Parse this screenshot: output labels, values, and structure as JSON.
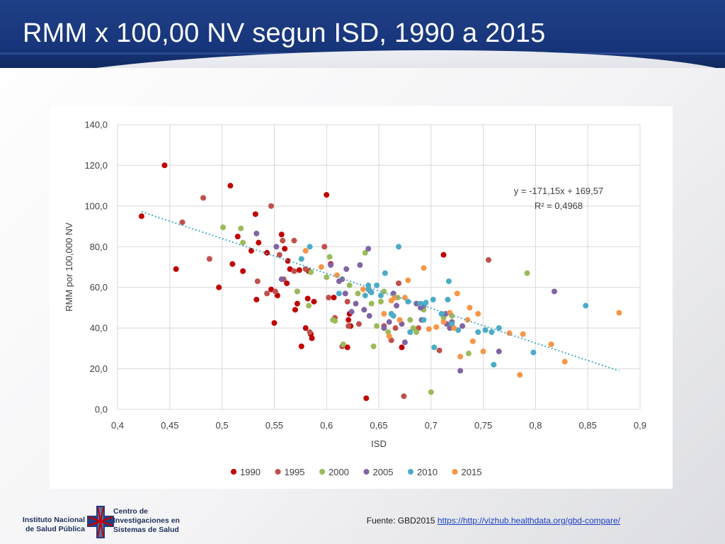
{
  "slide": {
    "title": "RMM x 100,00 NV segun ISD, 1990 a 2015",
    "source_prefix": "Fuente: GBD2015",
    "source_link": "https://http://vizhub.healthdata.org/gbd-compare/",
    "institution": [
      "Instituto Nacional",
      "de Salud Pública"
    ],
    "centro": [
      "Centro de",
      "Investigaciones en",
      "Sistemas de Salud"
    ]
  },
  "colors": {
    "1990": "#c00000",
    "1995": "#c0504d",
    "2000": "#9bbb59",
    "2005": "#8064a2",
    "2010": "#4bacc6",
    "2015": "#f79646",
    "trendline": "#4bacc6",
    "grid": "#d9d9d9"
  },
  "chart_data": {
    "type": "scatter",
    "xlabel": "ISD",
    "ylabel": "RMM por 100,000 NV",
    "xlim": [
      0.4,
      0.9
    ],
    "ylim": [
      0,
      140
    ],
    "x_ticks": [
      "0,4",
      "0,45",
      "0,5",
      "0,55",
      "0,6",
      "0,65",
      "0,7",
      "0,75",
      "0,8",
      "0,85",
      "0,9"
    ],
    "y_ticks": [
      "0,0",
      "20,0",
      "40,0",
      "60,0",
      "80,0",
      "100,0",
      "120,0",
      "140,0"
    ],
    "grid": true,
    "legend_position": "bottom",
    "trendline": {
      "type": "linear",
      "slope": -171.15,
      "intercept": 169.57,
      "x_range": [
        0.423,
        0.88
      ],
      "equation_label": "y = -171,15x + 169,57",
      "r2_label": "R² = 0,4968"
    },
    "series": [
      {
        "name": "1990",
        "points": [
          [
            0.423,
            95
          ],
          [
            0.445,
            120
          ],
          [
            0.456,
            69
          ],
          [
            0.497,
            60
          ],
          [
            0.508,
            110
          ],
          [
            0.51,
            71.5
          ],
          [
            0.515,
            85
          ],
          [
            0.52,
            68
          ],
          [
            0.528,
            78
          ],
          [
            0.532,
            96
          ],
          [
            0.533,
            54
          ],
          [
            0.535,
            82
          ],
          [
            0.543,
            77
          ],
          [
            0.547,
            59
          ],
          [
            0.55,
            42.5
          ],
          [
            0.553,
            56
          ],
          [
            0.557,
            86
          ],
          [
            0.56,
            79
          ],
          [
            0.562,
            62
          ],
          [
            0.563,
            73
          ],
          [
            0.565,
            69
          ],
          [
            0.57,
            49
          ],
          [
            0.572,
            52
          ],
          [
            0.574,
            68.5
          ],
          [
            0.576,
            31
          ],
          [
            0.58,
            40
          ],
          [
            0.582,
            54.5
          ],
          [
            0.583,
            68
          ],
          [
            0.585,
            37
          ],
          [
            0.586,
            35
          ],
          [
            0.588,
            53
          ],
          [
            0.6,
            105.5
          ],
          [
            0.604,
            71.5
          ],
          [
            0.607,
            55
          ],
          [
            0.62,
            30.5
          ],
          [
            0.621,
            44
          ],
          [
            0.622,
            47
          ],
          [
            0.623,
            41
          ],
          [
            0.638,
            5.5
          ],
          [
            0.672,
            30.5
          ],
          [
            0.712,
            76
          ]
        ]
      },
      {
        "name": "1995",
        "points": [
          [
            0.462,
            92
          ],
          [
            0.482,
            104
          ],
          [
            0.488,
            74
          ],
          [
            0.534,
            63
          ],
          [
            0.543,
            57
          ],
          [
            0.547,
            100
          ],
          [
            0.551,
            58
          ],
          [
            0.555,
            76
          ],
          [
            0.558,
            83
          ],
          [
            0.559,
            64
          ],
          [
            0.569,
            68
          ],
          [
            0.569,
            83
          ],
          [
            0.572,
            58
          ],
          [
            0.58,
            69
          ],
          [
            0.584,
            38
          ],
          [
            0.598,
            80
          ],
          [
            0.602,
            55
          ],
          [
            0.608,
            45
          ],
          [
            0.615,
            31
          ],
          [
            0.62,
            53
          ],
          [
            0.621,
            41
          ],
          [
            0.631,
            42
          ],
          [
            0.642,
            58
          ],
          [
            0.655,
            41
          ],
          [
            0.662,
            34
          ],
          [
            0.666,
            40
          ],
          [
            0.669,
            62
          ],
          [
            0.674,
            6.5
          ],
          [
            0.688,
            40
          ],
          [
            0.708,
            29
          ],
          [
            0.755,
            73.5
          ]
        ]
      },
      {
        "name": "2000",
        "points": [
          [
            0.501,
            89.5
          ],
          [
            0.518,
            89
          ],
          [
            0.52,
            82
          ],
          [
            0.572,
            58
          ],
          [
            0.583,
            51
          ],
          [
            0.585,
            67.5
          ],
          [
            0.6,
            65
          ],
          [
            0.603,
            75
          ],
          [
            0.606,
            44
          ],
          [
            0.608,
            43.5
          ],
          [
            0.616,
            32
          ],
          [
            0.622,
            61
          ],
          [
            0.63,
            57
          ],
          [
            0.637,
            77
          ],
          [
            0.643,
            52
          ],
          [
            0.645,
            31
          ],
          [
            0.648,
            41
          ],
          [
            0.652,
            53
          ],
          [
            0.655,
            58
          ],
          [
            0.659,
            38
          ],
          [
            0.668,
            55
          ],
          [
            0.68,
            44
          ],
          [
            0.683,
            40
          ],
          [
            0.686,
            38
          ],
          [
            0.693,
            49
          ],
          [
            0.7,
            8.5
          ],
          [
            0.712,
            45
          ],
          [
            0.72,
            46
          ],
          [
            0.736,
            27.5
          ],
          [
            0.792,
            67
          ]
        ]
      },
      {
        "name": "2005",
        "points": [
          [
            0.533,
            86.5
          ],
          [
            0.552,
            80
          ],
          [
            0.557,
            64
          ],
          [
            0.604,
            71
          ],
          [
            0.612,
            63
          ],
          [
            0.615,
            64
          ],
          [
            0.618,
            57
          ],
          [
            0.619,
            69
          ],
          [
            0.624,
            48
          ],
          [
            0.628,
            52
          ],
          [
            0.632,
            71
          ],
          [
            0.636,
            49
          ],
          [
            0.64,
            79
          ],
          [
            0.641,
            46
          ],
          [
            0.655,
            40
          ],
          [
            0.66,
            43
          ],
          [
            0.664,
            57
          ],
          [
            0.667,
            51
          ],
          [
            0.672,
            42
          ],
          [
            0.675,
            33
          ],
          [
            0.686,
            52
          ],
          [
            0.69,
            50
          ],
          [
            0.691,
            44
          ],
          [
            0.693,
            51
          ],
          [
            0.714,
            47
          ],
          [
            0.715,
            42
          ],
          [
            0.718,
            40
          ],
          [
            0.72,
            43
          ],
          [
            0.728,
            19
          ],
          [
            0.73,
            41
          ],
          [
            0.765,
            28.5
          ],
          [
            0.818,
            58
          ]
        ]
      },
      {
        "name": "2010",
        "points": [
          [
            0.576,
            74
          ],
          [
            0.584,
            80
          ],
          [
            0.612,
            57
          ],
          [
            0.637,
            56
          ],
          [
            0.64,
            59
          ],
          [
            0.64,
            61
          ],
          [
            0.643,
            57.5
          ],
          [
            0.648,
            61
          ],
          [
            0.652,
            56
          ],
          [
            0.656,
            67
          ],
          [
            0.662,
            47
          ],
          [
            0.664,
            46
          ],
          [
            0.669,
            80
          ],
          [
            0.678,
            53
          ],
          [
            0.68,
            38
          ],
          [
            0.69,
            52
          ],
          [
            0.693,
            44
          ],
          [
            0.695,
            52.5
          ],
          [
            0.702,
            54
          ],
          [
            0.703,
            30.5
          ],
          [
            0.71,
            47
          ],
          [
            0.716,
            54
          ],
          [
            0.717,
            63
          ],
          [
            0.72,
            42
          ],
          [
            0.726,
            39
          ],
          [
            0.745,
            38
          ],
          [
            0.752,
            39
          ],
          [
            0.758,
            38
          ],
          [
            0.76,
            22
          ],
          [
            0.765,
            40
          ],
          [
            0.798,
            28
          ],
          [
            0.848,
            51
          ]
        ]
      },
      {
        "name": "2015",
        "points": [
          [
            0.58,
            78
          ],
          [
            0.595,
            70
          ],
          [
            0.61,
            66
          ],
          [
            0.635,
            59
          ],
          [
            0.655,
            47
          ],
          [
            0.66,
            36
          ],
          [
            0.662,
            53.5
          ],
          [
            0.665,
            55
          ],
          [
            0.67,
            44
          ],
          [
            0.675,
            55
          ],
          [
            0.678,
            63.5
          ],
          [
            0.693,
            69.5
          ],
          [
            0.698,
            39.5
          ],
          [
            0.705,
            40.5
          ],
          [
            0.712,
            43
          ],
          [
            0.718,
            47.5
          ],
          [
            0.722,
            40
          ],
          [
            0.725,
            57
          ],
          [
            0.728,
            26
          ],
          [
            0.735,
            44
          ],
          [
            0.737,
            50
          ],
          [
            0.74,
            33.5
          ],
          [
            0.745,
            47
          ],
          [
            0.75,
            28.5
          ],
          [
            0.775,
            37.5
          ],
          [
            0.785,
            17
          ],
          [
            0.788,
            37
          ],
          [
            0.815,
            32
          ],
          [
            0.828,
            23.5
          ],
          [
            0.88,
            47.5
          ]
        ]
      }
    ]
  }
}
